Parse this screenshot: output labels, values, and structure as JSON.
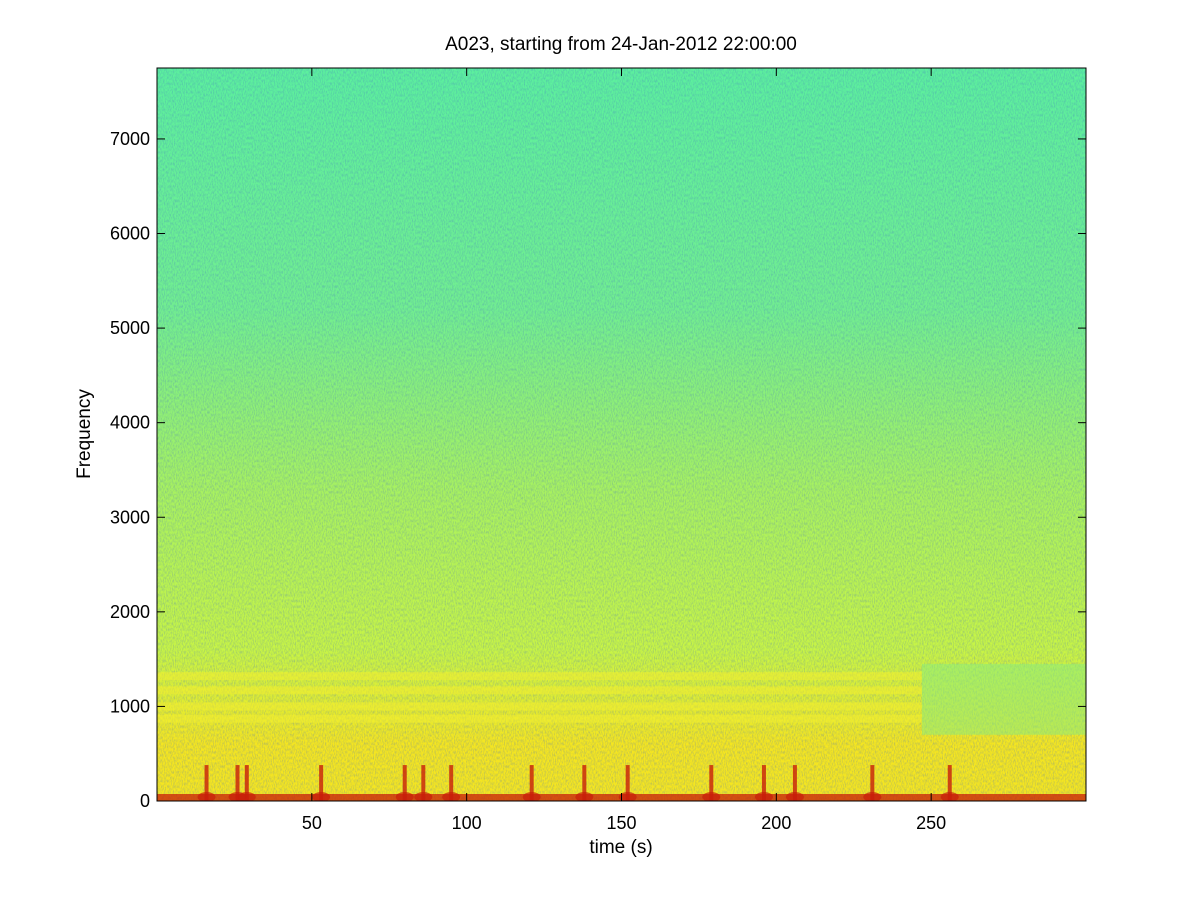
{
  "chart_data": {
    "type": "heatmap",
    "title": "A023, starting from 24-Jan-2012 22:00:00",
    "xlabel": "time (s)",
    "ylabel": "Frequency",
    "xlim": [
      0,
      300
    ],
    "ylim": [
      0,
      7750
    ],
    "x_ticks": [
      50,
      100,
      150,
      200,
      250
    ],
    "y_ticks": [
      0,
      1000,
      2000,
      3000,
      4000,
      5000,
      6000,
      7000
    ],
    "grid": false,
    "colormap": "jet",
    "colors": {
      "background_high_freq": "#5cf09e",
      "mid_band": "#c8f545",
      "low_band": "#f5e620",
      "strong_energy": "#c81e0a"
    },
    "features": {
      "harmonic_bands_hz": [
        1320,
        1170,
        1000,
        870
      ],
      "harmonic_band_end_s": 247,
      "transient_times_s": [
        16,
        26,
        29,
        53,
        80,
        86,
        95,
        121,
        138,
        152,
        179,
        196,
        206,
        231,
        256
      ]
    }
  }
}
